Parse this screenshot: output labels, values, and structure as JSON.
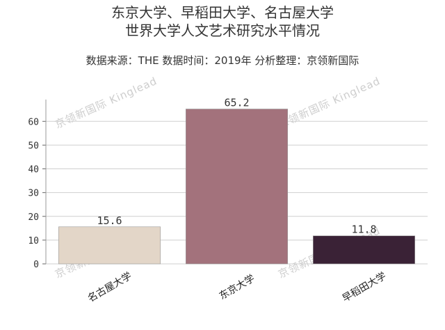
{
  "chart_data": {
    "type": "bar",
    "title": "东京大学、早稻田大学、名古屋大学",
    "subtitle": "世界大学人文艺术研究水平情况",
    "source_line": "数据来源：THE 数据时间：2019年 分析整理：京领新国际",
    "categories": [
      "名古屋大学",
      "东京大学",
      "早稻田大学"
    ],
    "values": [
      15.6,
      65.2,
      11.8
    ],
    "value_labels": [
      "15.6",
      "65.2",
      "11.8"
    ],
    "colors": [
      "#e3d6c8",
      "#a3727c",
      "#3a2236"
    ],
    "ylim": [
      0,
      68
    ],
    "yticks": [
      0,
      10,
      20,
      30,
      40,
      50,
      60
    ],
    "ytick_labels": [
      "0",
      "10",
      "20",
      "30",
      "40",
      "50",
      "60"
    ],
    "grid": true,
    "xlabel": "",
    "ylabel": ""
  },
  "watermark": "京领新国际 Kinglead"
}
